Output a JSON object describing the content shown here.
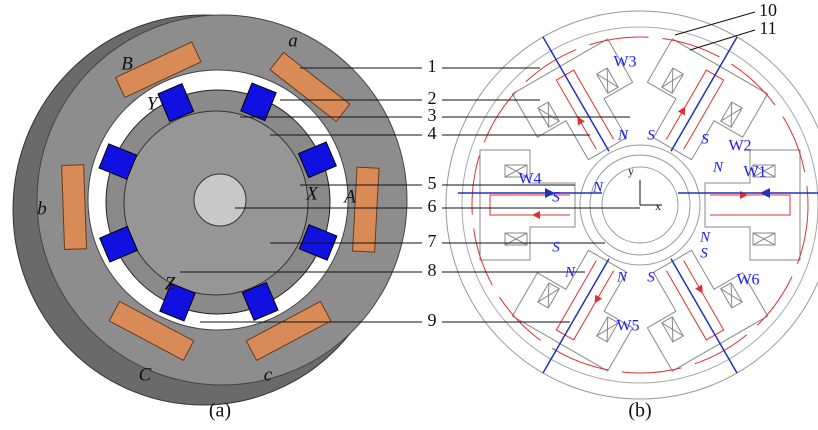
{
  "panel_a": {
    "caption": "(a)",
    "labels": [
      "a",
      "B",
      "Y",
      "X",
      "A",
      "b",
      "Z",
      "C",
      "c"
    ]
  },
  "callouts": [
    "1",
    "2",
    "3",
    "4",
    "5",
    "6",
    "7",
    "8",
    "9",
    "10",
    "11"
  ],
  "panel_b": {
    "caption": "(b)",
    "windings": [
      "W1",
      "W2",
      "W3",
      "W4",
      "W5",
      "W6"
    ],
    "poles": [
      "N",
      "S",
      "S",
      "N",
      "N",
      "S",
      "S",
      "N",
      "N",
      "S",
      "N",
      "S"
    ],
    "axes": [
      "x",
      "y"
    ]
  }
}
